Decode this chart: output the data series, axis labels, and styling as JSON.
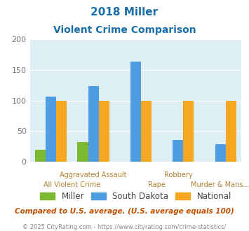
{
  "title_line1": "2018 Miller",
  "title_line2": "Violent Crime Comparison",
  "categories": [
    "All Violent Crime",
    "Aggravated Assault",
    "Rape",
    "Robbery",
    "Murder & Mans..."
  ],
  "miller_values": [
    20,
    32,
    0,
    0,
    0
  ],
  "sd_values": [
    106,
    123,
    163,
    35,
    29
  ],
  "national_values": [
    100,
    100,
    100,
    100,
    100
  ],
  "miller_color": "#7db832",
  "sd_color": "#4d9de0",
  "national_color": "#f5a623",
  "bg_color": "#ddeef4",
  "ylim": [
    0,
    200
  ],
  "yticks": [
    0,
    50,
    100,
    150,
    200
  ],
  "footer_text": "Compared to U.S. average. (U.S. average equals 100)",
  "copyright_text": "© 2025 CityRating.com - https://www.cityrating.com/crime-statistics/",
  "title_color": "#1a6fa8",
  "footer_color": "#c05000",
  "copyright_color": "#888888",
  "label_color": "#b08030",
  "legend_text_color": "#444444"
}
